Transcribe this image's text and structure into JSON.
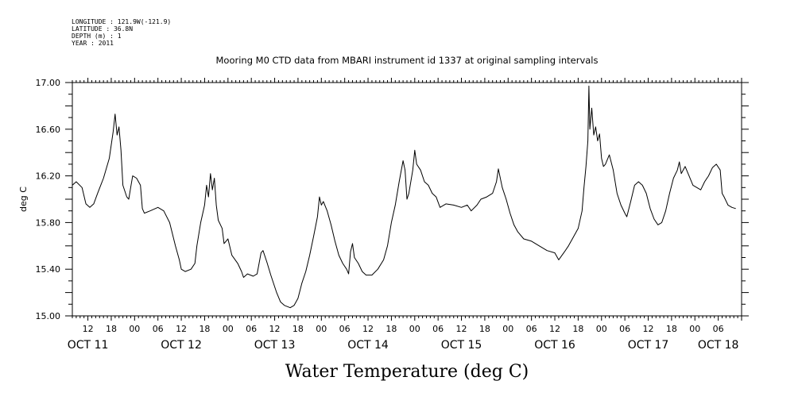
{
  "meta": {
    "lines": [
      "LONGITUDE : 121.9W(-121.9)",
      "LATITUDE : 36.8N",
      "DEPTH (m) : 1",
      "YEAR : 2011"
    ]
  },
  "chart_data": {
    "type": "line",
    "title": "Mooring M0 CTD data from MBARI instrument id 1337 at original sampling intervals",
    "xlabel": "Water Temperature (deg C)",
    "ylabel": "deg C",
    "ylim": [
      15.0,
      17.0
    ],
    "yticks": [
      15.0,
      15.4,
      15.8,
      16.2,
      16.6,
      17.0
    ],
    "ytick_labels": [
      "15.00",
      "15.40",
      "15.80",
      "16.20",
      "16.60",
      "17.00"
    ],
    "xlim": [
      "2011-10-11T08:00",
      "2011-10-18T12:00"
    ],
    "hour_ticks": [
      {
        "t": "2011-10-11T12:00",
        "label": "12"
      },
      {
        "t": "2011-10-11T18:00",
        "label": "18"
      },
      {
        "t": "2011-10-12T00:00",
        "label": "00"
      },
      {
        "t": "2011-10-12T06:00",
        "label": "06"
      },
      {
        "t": "2011-10-12T12:00",
        "label": "12"
      },
      {
        "t": "2011-10-12T18:00",
        "label": "18"
      },
      {
        "t": "2011-10-13T00:00",
        "label": "00"
      },
      {
        "t": "2011-10-13T06:00",
        "label": "06"
      },
      {
        "t": "2011-10-13T12:00",
        "label": "12"
      },
      {
        "t": "2011-10-13T18:00",
        "label": "18"
      },
      {
        "t": "2011-10-14T00:00",
        "label": "00"
      },
      {
        "t": "2011-10-14T06:00",
        "label": "06"
      },
      {
        "t": "2011-10-14T12:00",
        "label": "12"
      },
      {
        "t": "2011-10-14T18:00",
        "label": "18"
      },
      {
        "t": "2011-10-15T00:00",
        "label": "00"
      },
      {
        "t": "2011-10-15T06:00",
        "label": "06"
      },
      {
        "t": "2011-10-15T12:00",
        "label": "12"
      },
      {
        "t": "2011-10-15T18:00",
        "label": "18"
      },
      {
        "t": "2011-10-16T00:00",
        "label": "00"
      },
      {
        "t": "2011-10-16T06:00",
        "label": "06"
      },
      {
        "t": "2011-10-16T12:00",
        "label": "12"
      },
      {
        "t": "2011-10-16T18:00",
        "label": "18"
      },
      {
        "t": "2011-10-17T00:00",
        "label": "00"
      },
      {
        "t": "2011-10-17T06:00",
        "label": "06"
      },
      {
        "t": "2011-10-17T12:00",
        "label": "12"
      },
      {
        "t": "2011-10-17T18:00",
        "label": "18"
      },
      {
        "t": "2011-10-18T00:00",
        "label": "00"
      },
      {
        "t": "2011-10-18T06:00",
        "label": "06"
      }
    ],
    "date_labels": [
      {
        "t": "2011-10-11T12:00",
        "label": "OCT 11"
      },
      {
        "t": "2011-10-12T12:00",
        "label": "OCT 12"
      },
      {
        "t": "2011-10-13T12:00",
        "label": "OCT 13"
      },
      {
        "t": "2011-10-14T12:00",
        "label": "OCT 14"
      },
      {
        "t": "2011-10-15T12:00",
        "label": "OCT 15"
      },
      {
        "t": "2011-10-16T12:00",
        "label": "OCT 16"
      },
      {
        "t": "2011-10-17T12:00",
        "label": "OCT 17"
      },
      {
        "t": "2011-10-18T06:00",
        "label": "OCT 18"
      }
    ],
    "series": [
      {
        "color": "#000000",
        "points": [
          [
            "2011-10-11T08:00",
            16.12
          ],
          [
            "2011-10-11T09:00",
            16.15
          ],
          [
            "2011-10-11T10:30",
            16.1
          ],
          [
            "2011-10-11T11:30",
            15.96
          ],
          [
            "2011-10-11T12:30",
            15.93
          ],
          [
            "2011-10-11T13:30",
            15.96
          ],
          [
            "2011-10-11T14:30",
            16.05
          ],
          [
            "2011-10-11T16:00",
            16.18
          ],
          [
            "2011-10-11T17:30",
            16.35
          ],
          [
            "2011-10-11T18:30",
            16.58
          ],
          [
            "2011-10-11T19:00",
            16.73
          ],
          [
            "2011-10-11T19:30",
            16.55
          ],
          [
            "2011-10-11T20:00",
            16.62
          ],
          [
            "2011-10-11T20:30",
            16.42
          ],
          [
            "2011-10-11T21:00",
            16.12
          ],
          [
            "2011-10-11T22:00",
            16.02
          ],
          [
            "2011-10-11T22:30",
            16.0
          ],
          [
            "2011-10-11T23:00",
            16.1
          ],
          [
            "2011-10-11T23:30",
            16.2
          ],
          [
            "2011-10-12T00:30",
            16.18
          ],
          [
            "2011-10-12T01:30",
            16.12
          ],
          [
            "2011-10-12T02:00",
            15.92
          ],
          [
            "2011-10-12T02:30",
            15.88
          ],
          [
            "2011-10-12T04:00",
            15.9
          ],
          [
            "2011-10-12T06:00",
            15.93
          ],
          [
            "2011-10-12T07:30",
            15.9
          ],
          [
            "2011-10-12T09:00",
            15.8
          ],
          [
            "2011-10-12T10:30",
            15.6
          ],
          [
            "2011-10-12T11:30",
            15.48
          ],
          [
            "2011-10-12T12:00",
            15.4
          ],
          [
            "2011-10-12T13:00",
            15.38
          ],
          [
            "2011-10-12T14:30",
            15.4
          ],
          [
            "2011-10-12T15:30",
            15.45
          ],
          [
            "2011-10-12T16:00",
            15.6
          ],
          [
            "2011-10-12T17:00",
            15.8
          ],
          [
            "2011-10-12T18:00",
            15.95
          ],
          [
            "2011-10-12T18:30",
            16.12
          ],
          [
            "2011-10-12T19:00",
            16.02
          ],
          [
            "2011-10-12T19:30",
            16.22
          ],
          [
            "2011-10-12T20:00",
            16.08
          ],
          [
            "2011-10-12T20:30",
            16.18
          ],
          [
            "2011-10-12T21:00",
            15.95
          ],
          [
            "2011-10-12T21:30",
            15.82
          ],
          [
            "2011-10-12T22:30",
            15.75
          ],
          [
            "2011-10-12T23:00",
            15.62
          ],
          [
            "2011-10-13T00:00",
            15.66
          ],
          [
            "2011-10-13T01:00",
            15.52
          ],
          [
            "2011-10-13T02:30",
            15.45
          ],
          [
            "2011-10-13T03:30",
            15.38
          ],
          [
            "2011-10-13T04:00",
            15.33
          ],
          [
            "2011-10-13T05:00",
            15.36
          ],
          [
            "2011-10-13T06:30",
            15.34
          ],
          [
            "2011-10-13T07:30",
            15.36
          ],
          [
            "2011-10-13T08:30",
            15.54
          ],
          [
            "2011-10-13T09:00",
            15.56
          ],
          [
            "2011-10-13T10:00",
            15.46
          ],
          [
            "2011-10-13T11:00",
            15.35
          ],
          [
            "2011-10-13T12:30",
            15.2
          ],
          [
            "2011-10-13T13:30",
            15.12
          ],
          [
            "2011-10-13T14:30",
            15.09
          ],
          [
            "2011-10-13T16:00",
            15.07
          ],
          [
            "2011-10-13T17:00",
            15.09
          ],
          [
            "2011-10-13T18:00",
            15.15
          ],
          [
            "2011-10-13T19:00",
            15.28
          ],
          [
            "2011-10-13T20:00",
            15.38
          ],
          [
            "2011-10-13T21:00",
            15.52
          ],
          [
            "2011-10-13T22:00",
            15.68
          ],
          [
            "2011-10-13T23:00",
            15.85
          ],
          [
            "2011-10-13T23:30",
            16.02
          ],
          [
            "2011-10-14T00:00",
            15.95
          ],
          [
            "2011-10-14T00:30",
            15.98
          ],
          [
            "2011-10-14T01:30",
            15.9
          ],
          [
            "2011-10-14T02:30",
            15.78
          ],
          [
            "2011-10-14T03:30",
            15.64
          ],
          [
            "2011-10-14T04:30",
            15.52
          ],
          [
            "2011-10-14T05:30",
            15.45
          ],
          [
            "2011-10-14T06:30",
            15.4
          ],
          [
            "2011-10-14T07:00",
            15.36
          ],
          [
            "2011-10-14T07:30",
            15.55
          ],
          [
            "2011-10-14T08:00",
            15.62
          ],
          [
            "2011-10-14T08:30",
            15.5
          ],
          [
            "2011-10-14T09:30",
            15.45
          ],
          [
            "2011-10-14T10:30",
            15.38
          ],
          [
            "2011-10-14T11:30",
            15.35
          ],
          [
            "2011-10-14T13:00",
            15.35
          ],
          [
            "2011-10-14T14:30",
            15.4
          ],
          [
            "2011-10-14T16:00",
            15.48
          ],
          [
            "2011-10-14T17:00",
            15.6
          ],
          [
            "2011-10-14T18:00",
            15.8
          ],
          [
            "2011-10-14T19:00",
            15.95
          ],
          [
            "2011-10-14T20:00",
            16.15
          ],
          [
            "2011-10-14T21:00",
            16.33
          ],
          [
            "2011-10-14T21:30",
            16.25
          ],
          [
            "2011-10-14T22:00",
            16.0
          ],
          [
            "2011-10-14T22:30",
            16.05
          ],
          [
            "2011-10-14T23:30",
            16.25
          ],
          [
            "2011-10-15T00:00",
            16.42
          ],
          [
            "2011-10-15T00:30",
            16.3
          ],
          [
            "2011-10-15T01:30",
            16.25
          ],
          [
            "2011-10-15T02:30",
            16.15
          ],
          [
            "2011-10-15T03:30",
            16.12
          ],
          [
            "2011-10-15T04:30",
            16.05
          ],
          [
            "2011-10-15T05:30",
            16.02
          ],
          [
            "2011-10-15T06:30",
            15.93
          ],
          [
            "2011-10-15T08:00",
            15.96
          ],
          [
            "2011-10-15T10:00",
            15.95
          ],
          [
            "2011-10-15T12:00",
            15.93
          ],
          [
            "2011-10-15T13:30",
            15.95
          ],
          [
            "2011-10-15T14:30",
            15.9
          ],
          [
            "2011-10-15T16:00",
            15.95
          ],
          [
            "2011-10-15T17:00",
            16.0
          ],
          [
            "2011-10-15T18:30",
            16.02
          ],
          [
            "2011-10-15T20:00",
            16.05
          ],
          [
            "2011-10-15T21:00",
            16.15
          ],
          [
            "2011-10-15T21:30",
            16.26
          ],
          [
            "2011-10-15T22:30",
            16.1
          ],
          [
            "2011-10-15T23:30",
            16.0
          ],
          [
            "2011-10-16T00:30",
            15.88
          ],
          [
            "2011-10-16T01:30",
            15.78
          ],
          [
            "2011-10-16T02:30",
            15.72
          ],
          [
            "2011-10-16T04:00",
            15.66
          ],
          [
            "2011-10-16T06:00",
            15.64
          ],
          [
            "2011-10-16T08:00",
            15.6
          ],
          [
            "2011-10-16T10:00",
            15.56
          ],
          [
            "2011-10-16T12:00",
            15.54
          ],
          [
            "2011-10-16T13:00",
            15.48
          ],
          [
            "2011-10-16T14:30",
            15.55
          ],
          [
            "2011-10-16T15:30",
            15.6
          ],
          [
            "2011-10-16T16:30",
            15.66
          ],
          [
            "2011-10-16T18:00",
            15.75
          ],
          [
            "2011-10-16T19:00",
            15.9
          ],
          [
            "2011-10-16T19:30",
            16.1
          ],
          [
            "2011-10-16T20:00",
            16.28
          ],
          [
            "2011-10-16T20:30",
            16.5
          ],
          [
            "2011-10-16T20:45",
            16.97
          ],
          [
            "2011-10-16T21:00",
            16.6
          ],
          [
            "2011-10-16T21:30",
            16.78
          ],
          [
            "2011-10-16T22:00",
            16.55
          ],
          [
            "2011-10-16T22:30",
            16.62
          ],
          [
            "2011-10-16T23:00",
            16.5
          ],
          [
            "2011-10-16T23:30",
            16.56
          ],
          [
            "2011-10-17T00:00",
            16.35
          ],
          [
            "2011-10-17T00:30",
            16.28
          ],
          [
            "2011-10-17T01:00",
            16.3
          ],
          [
            "2011-10-17T02:00",
            16.38
          ],
          [
            "2011-10-17T03:00",
            16.25
          ],
          [
            "2011-10-17T04:00",
            16.05
          ],
          [
            "2011-10-17T05:00",
            15.95
          ],
          [
            "2011-10-17T06:00",
            15.88
          ],
          [
            "2011-10-17T06:30",
            15.85
          ],
          [
            "2011-10-17T07:30",
            15.98
          ],
          [
            "2011-10-17T08:30",
            16.12
          ],
          [
            "2011-10-17T09:30",
            16.15
          ],
          [
            "2011-10-17T10:30",
            16.12
          ],
          [
            "2011-10-17T11:30",
            16.05
          ],
          [
            "2011-10-17T12:30",
            15.92
          ],
          [
            "2011-10-17T13:30",
            15.83
          ],
          [
            "2011-10-17T14:30",
            15.78
          ],
          [
            "2011-10-17T15:30",
            15.8
          ],
          [
            "2011-10-17T16:30",
            15.9
          ],
          [
            "2011-10-17T17:30",
            16.05
          ],
          [
            "2011-10-17T18:30",
            16.18
          ],
          [
            "2011-10-17T19:30",
            16.25
          ],
          [
            "2011-10-17T20:00",
            16.32
          ],
          [
            "2011-10-17T20:30",
            16.22
          ],
          [
            "2011-10-17T21:30",
            16.28
          ],
          [
            "2011-10-17T22:30",
            16.2
          ],
          [
            "2011-10-17T23:30",
            16.12
          ],
          [
            "2011-10-18T00:30",
            16.1
          ],
          [
            "2011-10-18T01:30",
            16.08
          ],
          [
            "2011-10-18T02:30",
            16.15
          ],
          [
            "2011-10-18T03:30",
            16.2
          ],
          [
            "2011-10-18T04:30",
            16.27
          ],
          [
            "2011-10-18T05:30",
            16.3
          ],
          [
            "2011-10-18T06:30",
            16.25
          ],
          [
            "2011-10-18T07:00",
            16.05
          ],
          [
            "2011-10-18T07:30",
            16.02
          ],
          [
            "2011-10-18T08:30",
            15.95
          ],
          [
            "2011-10-18T09:30",
            15.93
          ],
          [
            "2011-10-18T10:30",
            15.92
          ]
        ]
      }
    ]
  }
}
